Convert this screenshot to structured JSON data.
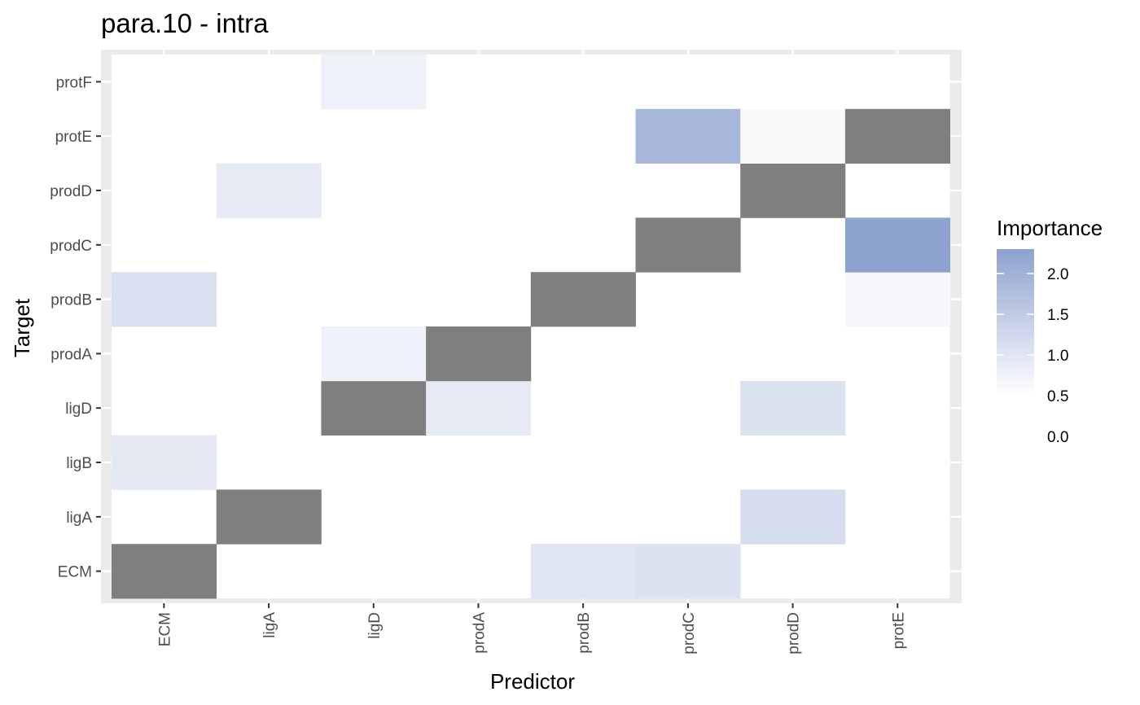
{
  "chart_data": {
    "type": "heatmap",
    "title": "para.10 - intra",
    "xlabel": "Predictor",
    "ylabel": "Target",
    "x_categories": [
      "ECM",
      "ligA",
      "ligD",
      "prodA",
      "prodB",
      "prodC",
      "prodD",
      "protE"
    ],
    "y_categories": [
      "ECM",
      "ligA",
      "ligB",
      "ligD",
      "prodA",
      "prodB",
      "prodC",
      "prodD",
      "protE",
      "protF"
    ],
    "cells": [
      {
        "x": "ECM",
        "y": "ECM",
        "value": null
      },
      {
        "x": "prodB",
        "y": "ECM",
        "value": 1.0
      },
      {
        "x": "prodC",
        "y": "ECM",
        "value": 1.05
      },
      {
        "x": "ligA",
        "y": "ligA",
        "value": null
      },
      {
        "x": "prodD",
        "y": "ligA",
        "value": 1.15
      },
      {
        "x": "ECM",
        "y": "ligB",
        "value": 0.95
      },
      {
        "x": "ligD",
        "y": "ligD",
        "value": null
      },
      {
        "x": "prodA",
        "y": "ligD",
        "value": 0.9
      },
      {
        "x": "prodD",
        "y": "ligD",
        "value": 1.05
      },
      {
        "x": "ligD",
        "y": "prodA",
        "value": 0.75
      },
      {
        "x": "prodA",
        "y": "prodA",
        "value": null
      },
      {
        "x": "ECM",
        "y": "prodB",
        "value": 1.1
      },
      {
        "x": "prodB",
        "y": "prodB",
        "value": null
      },
      {
        "x": "protE",
        "y": "prodB",
        "value": 0.65
      },
      {
        "x": "prodC",
        "y": "prodC",
        "value": null
      },
      {
        "x": "protE",
        "y": "prodC",
        "value": 2.3
      },
      {
        "x": "ligA",
        "y": "prodD",
        "value": 0.9
      },
      {
        "x": "prodD",
        "y": "prodD",
        "value": null
      },
      {
        "x": "prodC",
        "y": "protE",
        "value": 1.9
      },
      {
        "x": "prodD",
        "y": "protE",
        "value": 0.6
      },
      {
        "x": "protE",
        "y": "protE",
        "value": null
      },
      {
        "x": "ligD",
        "y": "protF",
        "value": 0.78
      }
    ],
    "na_color": "#7f7f7f",
    "color_low": "#ffffff",
    "color_high": "#8da2cf",
    "colorbar_range": [
      0.5,
      2.3
    ],
    "legend": {
      "title": "Importance",
      "ticks": [
        "2.0",
        "1.5",
        "1.0",
        "0.5",
        "0.0"
      ],
      "tick_values": [
        2.0,
        1.5,
        1.0,
        0.5,
        0.0
      ],
      "placement": "right"
    },
    "panel_background": "#ebebeb",
    "grid": true
  }
}
